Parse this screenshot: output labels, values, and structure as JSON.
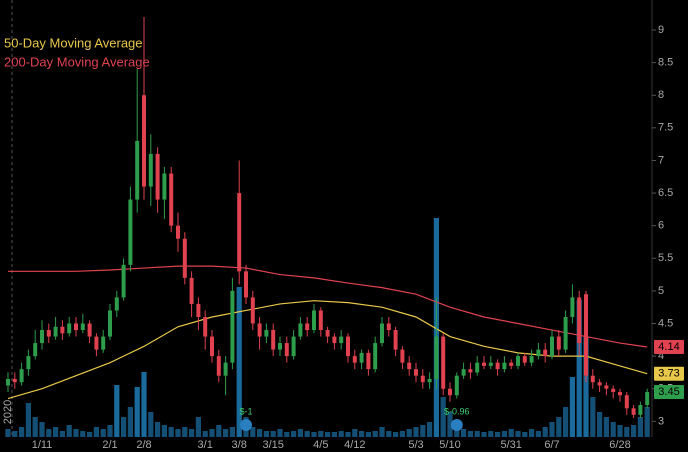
{
  "chart_data": {
    "type": "candlestick",
    "categories": [
      null,
      null,
      null,
      null,
      null,
      "1/11",
      null,
      null,
      null,
      null,
      null,
      null,
      null,
      null,
      null,
      "2/1",
      null,
      null,
      null,
      null,
      "2/8",
      null,
      null,
      null,
      null,
      null,
      null,
      null,
      null,
      "3/1",
      null,
      null,
      null,
      null,
      "3/8",
      null,
      null,
      null,
      null,
      "3/15",
      null,
      null,
      null,
      null,
      null,
      null,
      "4/5",
      null,
      null,
      null,
      null,
      "4/12",
      null,
      null,
      null,
      null,
      null,
      null,
      null,
      null,
      "5/3",
      null,
      null,
      null,
      null,
      "5/10",
      null,
      null,
      null,
      null,
      null,
      null,
      null,
      null,
      "5/31",
      null,
      null,
      null,
      null,
      null,
      "6/7",
      null,
      null,
      null,
      null,
      null,
      null,
      null,
      null,
      null,
      "6/28",
      null,
      null,
      null,
      null
    ],
    "open": [
      3.55,
      3.65,
      3.6,
      3.8,
      4.0,
      4.2,
      4.4,
      4.3,
      4.45,
      4.35,
      4.5,
      4.4,
      4.5,
      4.3,
      4.1,
      4.3,
      4.7,
      4.9,
      5.4,
      6.4,
      8.0,
      6.6,
      7.1,
      6.4,
      6.8,
      6.0,
      5.8,
      5.2,
      4.8,
      4.6,
      4.3,
      4.0,
      3.7,
      3.9,
      6.5,
      5.3,
      4.9,
      4.5,
      4.3,
      4.4,
      4.1,
      4.2,
      4.0,
      4.3,
      4.5,
      4.4,
      4.7,
      4.4,
      4.3,
      4.2,
      4.3,
      4.0,
      3.9,
      4.05,
      3.8,
      4.2,
      4.5,
      4.4,
      4.1,
      3.9,
      3.8,
      3.7,
      3.6,
      3.65,
      4.3,
      3.5,
      3.4,
      3.7,
      3.8,
      3.75,
      3.9,
      3.85,
      3.9,
      3.8,
      3.9,
      3.85,
      4.0,
      3.9,
      4.0,
      4.1,
      4.0,
      4.3,
      4.1,
      4.6,
      4.9,
      4.95,
      3.7,
      3.6,
      3.55,
      3.5,
      3.45,
      3.4,
      3.2,
      3.1,
      3.25
    ],
    "high": [
      3.75,
      3.75,
      3.9,
      4.1,
      4.4,
      4.55,
      4.5,
      4.6,
      4.55,
      4.6,
      4.6,
      4.65,
      4.55,
      4.35,
      4.4,
      4.8,
      5.0,
      5.5,
      6.6,
      8.4,
      9.2,
      7.4,
      7.2,
      6.9,
      6.9,
      6.2,
      5.9,
      5.3,
      4.9,
      4.7,
      4.4,
      4.1,
      4.0,
      5.2,
      7.0,
      5.4,
      5.0,
      4.6,
      4.5,
      4.5,
      4.3,
      4.3,
      4.4,
      4.6,
      4.6,
      4.8,
      4.75,
      4.45,
      4.35,
      4.4,
      4.35,
      4.1,
      4.1,
      4.1,
      4.3,
      4.6,
      4.6,
      4.45,
      4.15,
      4.0,
      3.9,
      3.8,
      3.75,
      4.9,
      4.35,
      3.6,
      3.75,
      3.9,
      3.9,
      4.0,
      4.0,
      4.0,
      3.95,
      4.0,
      3.95,
      4.05,
      4.05,
      4.1,
      4.2,
      4.2,
      4.4,
      4.4,
      4.7,
      5.1,
      5.0,
      5.0,
      3.8,
      3.65,
      3.6,
      3.55,
      3.5,
      3.45,
      3.25,
      3.3,
      3.5
    ],
    "low": [
      3.45,
      3.5,
      3.55,
      3.7,
      3.95,
      4.1,
      4.2,
      4.25,
      4.25,
      4.3,
      4.3,
      4.35,
      4.2,
      4.0,
      4.05,
      4.25,
      4.6,
      4.85,
      5.3,
      6.2,
      6.4,
      6.3,
      6.2,
      6.1,
      5.9,
      5.6,
      5.1,
      4.6,
      4.4,
      4.1,
      3.9,
      3.6,
      3.4,
      3.8,
      5.1,
      4.8,
      4.4,
      4.1,
      4.2,
      4.0,
      4.0,
      3.9,
      3.95,
      4.25,
      4.3,
      4.35,
      4.3,
      4.2,
      4.1,
      4.1,
      3.9,
      3.8,
      3.8,
      3.7,
      3.75,
      4.15,
      4.3,
      4.0,
      3.8,
      3.7,
      3.6,
      3.5,
      3.5,
      3.5,
      3.4,
      3.3,
      3.35,
      3.65,
      3.65,
      3.7,
      3.8,
      3.8,
      3.7,
      3.75,
      3.8,
      3.8,
      3.85,
      3.85,
      3.95,
      3.9,
      3.95,
      4.0,
      4.05,
      4.5,
      4.0,
      3.6,
      3.5,
      3.45,
      3.4,
      3.35,
      3.3,
      3.1,
      3.05,
      3.05,
      3.2
    ],
    "close": [
      3.65,
      3.6,
      3.8,
      4.0,
      4.2,
      4.4,
      4.3,
      4.45,
      4.35,
      4.5,
      4.4,
      4.5,
      4.3,
      4.1,
      4.3,
      4.7,
      4.9,
      5.4,
      6.4,
      7.3,
      6.6,
      7.1,
      6.4,
      6.8,
      6.0,
      5.8,
      5.2,
      4.8,
      4.6,
      4.3,
      4.0,
      3.7,
      3.9,
      5.0,
      5.3,
      4.9,
      4.5,
      4.3,
      4.4,
      4.1,
      4.2,
      4.0,
      4.3,
      4.5,
      4.4,
      4.7,
      4.4,
      4.3,
      4.2,
      4.3,
      4.0,
      3.9,
      4.05,
      3.8,
      4.2,
      4.5,
      4.4,
      4.1,
      3.9,
      3.8,
      3.7,
      3.6,
      3.65,
      4.3,
      3.5,
      3.4,
      3.7,
      3.8,
      3.75,
      3.9,
      3.85,
      3.9,
      3.8,
      3.9,
      3.85,
      4.0,
      3.9,
      4.0,
      4.1,
      4.0,
      4.3,
      4.1,
      4.6,
      4.9,
      4.2,
      3.7,
      3.6,
      3.55,
      3.5,
      3.45,
      3.4,
      3.2,
      3.1,
      3.25,
      3.45
    ],
    "up_color": "#2f9e4c",
    "down_color": "#e0434f",
    "volume": {
      "values": [
        8,
        6,
        10,
        34,
        20,
        15,
        8,
        10,
        6,
        12,
        8,
        6,
        5,
        10,
        8,
        12,
        52,
        20,
        30,
        50,
        65,
        25,
        15,
        12,
        10,
        8,
        10,
        8,
        20,
        6,
        8,
        12,
        8,
        10,
        150,
        20,
        10,
        8,
        6,
        6,
        8,
        5,
        6,
        8,
        6,
        5,
        6,
        5,
        5,
        6,
        5,
        8,
        6,
        5,
        6,
        10,
        6,
        5,
        6,
        8,
        10,
        12,
        15,
        219,
        40,
        25,
        8,
        8,
        6,
        6,
        5,
        6,
        5,
        6,
        8,
        6,
        5,
        8,
        6,
        10,
        15,
        20,
        30,
        60,
        137,
        100,
        40,
        25,
        20,
        15,
        12,
        10,
        12,
        20,
        30
      ],
      "color": "#1b6a9c",
      "y2lim": [
        0,
        437
      ]
    },
    "moving_averages": [
      {
        "name": "50-Day Moving Average",
        "color": "#e8c84a",
        "x": [
          0,
          5,
          10,
          15,
          20,
          25,
          30,
          35,
          40,
          45,
          50,
          55,
          60,
          65,
          70,
          75,
          80,
          85,
          90,
          94
        ],
        "values": [
          3.35,
          3.5,
          3.7,
          3.9,
          4.15,
          4.45,
          4.6,
          4.7,
          4.8,
          4.85,
          4.82,
          4.75,
          4.6,
          4.3,
          4.15,
          4.05,
          4.0,
          4.0,
          3.85,
          3.73
        ]
      },
      {
        "name": "200-Day Moving Average",
        "color": "#e0434f",
        "x": [
          0,
          5,
          10,
          15,
          20,
          25,
          30,
          35,
          40,
          45,
          50,
          55,
          60,
          65,
          70,
          75,
          80,
          85,
          90,
          94
        ],
        "values": [
          5.3,
          5.3,
          5.3,
          5.32,
          5.35,
          5.38,
          5.38,
          5.35,
          5.25,
          5.2,
          5.12,
          5.05,
          4.95,
          4.75,
          4.6,
          4.5,
          4.4,
          4.3,
          4.2,
          4.14
        ]
      }
    ],
    "price_tags": [
      {
        "value": 4.14,
        "color": "#e0434f"
      },
      {
        "value": 3.73,
        "color": "#e8c84a"
      },
      {
        "value": 3.45,
        "color": "#2f9e4c"
      }
    ],
    "events": [
      {
        "label": "$-1",
        "at": 35
      },
      {
        "label": "$-0.96",
        "at": 66
      }
    ],
    "year_label": "2020",
    "ylim": [
      2.76,
      9.46
    ],
    "yticks": [
      3,
      3.5,
      4,
      4.5,
      5,
      5.5,
      6,
      6.5,
      7,
      7.5,
      8,
      8.5,
      9
    ]
  }
}
